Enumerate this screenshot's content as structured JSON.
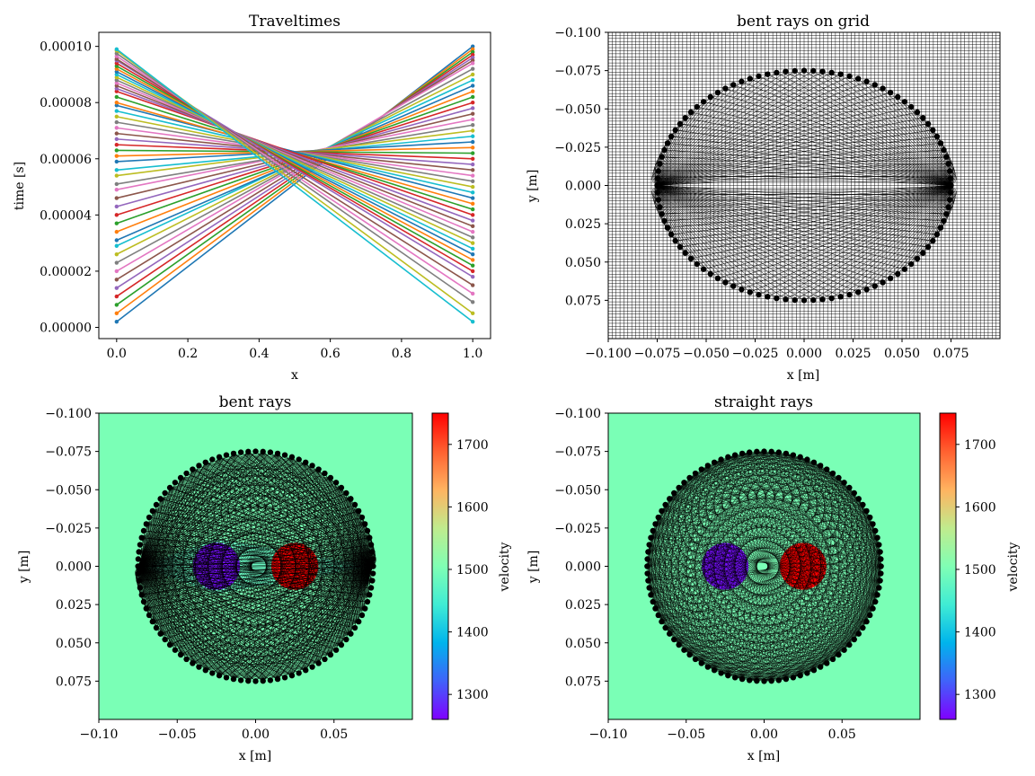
{
  "chart_data": [
    {
      "type": "line",
      "title": "Traveltimes",
      "xlabel": "x",
      "ylabel": "time [s]",
      "xlim": [
        -0.05,
        1.05
      ],
      "ylim": [
        -4e-06,
        0.000105
      ],
      "xticks": [
        "0.0",
        "0.2",
        "0.4",
        "0.6",
        "0.8",
        "1.0"
      ],
      "yticks": [
        "0.00000",
        "0.00002",
        "0.00004",
        "0.00006",
        "0.00008",
        "0.00010"
      ],
      "x": [
        0.0,
        1.0
      ],
      "series_description_count": 50,
      "time_at_x0": [
        2e-06,
        5e-06,
        8e-06,
        1.1e-05,
        1.4e-05,
        1.7e-05,
        2e-05,
        2.3e-05,
        2.6e-05,
        2.9e-05,
        3.1e-05,
        3.4e-05,
        3.7e-05,
        4e-05,
        4.3e-05,
        4.6e-05,
        4.9e-05,
        5.1e-05,
        5.4e-05,
        5.6e-05,
        5.9e-05,
        6.1e-05,
        6.3e-05,
        6.5e-05,
        6.7e-05,
        6.9e-05,
        7.1e-05,
        7.3e-05,
        7.5e-05,
        7.7e-05,
        7.9e-05,
        8e-05,
        8.2e-05,
        8.4e-05,
        8.5e-05,
        8.6e-05,
        8.7e-05,
        8.8e-05,
        8.9e-05,
        9e-05,
        9.1e-05,
        9.2e-05,
        9.3e-05,
        9.4e-05,
        9.5e-05,
        9.55e-05,
        9.65e-05,
        9.75e-05,
        9.85e-05,
        9.9e-05
      ],
      "time_at_x1": [
        0.0001,
        9.9e-05,
        9.8e-05,
        9.7e-05,
        9.6e-05,
        9.5e-05,
        9.4e-05,
        9.2e-05,
        9e-05,
        8.8e-05,
        8.6e-05,
        8.4e-05,
        8.2e-05,
        8e-05,
        7.8e-05,
        7.6e-05,
        7.4e-05,
        7.2e-05,
        7e-05,
        6.8e-05,
        6.6e-05,
        6.4e-05,
        6.2e-05,
        6e-05,
        5.8e-05,
        5.6e-05,
        5.4e-05,
        5.2e-05,
        5e-05,
        4.8e-05,
        4.6e-05,
        4.4e-05,
        4.2e-05,
        4e-05,
        3.8e-05,
        3.6e-05,
        3.4e-05,
        3.2e-05,
        3e-05,
        2.8e-05,
        2.6e-05,
        2.4e-05,
        2.2e-05,
        2e-05,
        1.8e-05,
        1.5e-05,
        1.2e-05,
        9e-06,
        5e-06,
        2e-06
      ],
      "colors": [
        "#1f77b4",
        "#ff7f0e",
        "#2ca02c",
        "#d62728",
        "#9467bd",
        "#8c564b",
        "#e377c2",
        "#7f7f7f",
        "#bcbd22",
        "#17becf"
      ]
    },
    {
      "type": "scatter",
      "title": "bent rays on grid",
      "xlabel": "x [m]",
      "ylabel": "y [m]",
      "xlim": [
        -0.1,
        0.1
      ],
      "ylim": [
        0.1,
        -0.1
      ],
      "xticks": [
        "−0.100",
        "−0.075",
        "−0.050",
        "−0.025",
        "0.000",
        "0.025",
        "0.050",
        "0.075"
      ],
      "yticks": [
        "−0.100",
        "−0.075",
        "−0.050",
        "−0.025",
        "0.000",
        "0.025",
        "0.050",
        "0.075"
      ],
      "transducer_ring_radius": 0.075,
      "transducer_count": 100,
      "grid": true
    },
    {
      "type": "heatmap",
      "title": "bent rays",
      "xlabel": "x [m]",
      "ylabel": "y [m]",
      "xlim": [
        -0.1,
        0.1
      ],
      "ylim": [
        0.1,
        -0.1
      ],
      "xticks": [
        "−0.10",
        "−0.05",
        "0.00",
        "0.05"
      ],
      "yticks": [
        "−0.100",
        "−0.075",
        "−0.050",
        "−0.025",
        "0.000",
        "0.025",
        "0.050",
        "0.075"
      ],
      "background_velocity": 1500,
      "inclusions": [
        {
          "x": -0.025,
          "y": 0.0,
          "r": 0.015,
          "velocity": 1270
        },
        {
          "x": 0.025,
          "y": 0.0,
          "r": 0.015,
          "velocity": 1750
        }
      ],
      "colorbar": {
        "label": "velocity",
        "ticks": [
          "1300",
          "1400",
          "1500",
          "1600",
          "1700"
        ],
        "range": [
          1260,
          1750
        ]
      }
    },
    {
      "type": "heatmap",
      "title": "straight rays",
      "xlabel": "x [m]",
      "ylabel": "y [m]",
      "xlim": [
        -0.1,
        0.1
      ],
      "ylim": [
        0.1,
        -0.1
      ],
      "xticks": [
        "−0.10",
        "−0.05",
        "0.00",
        "0.05"
      ],
      "yticks": [
        "−0.100",
        "−0.075",
        "−0.050",
        "−0.025",
        "0.000",
        "0.025",
        "0.050",
        "0.075"
      ],
      "background_velocity": 1500,
      "inclusions": [
        {
          "x": -0.025,
          "y": 0.0,
          "r": 0.015,
          "velocity": 1270
        },
        {
          "x": 0.025,
          "y": 0.0,
          "r": 0.015,
          "velocity": 1750
        }
      ],
      "colorbar": {
        "label": "velocity",
        "ticks": [
          "1300",
          "1400",
          "1500",
          "1600",
          "1700"
        ],
        "range": [
          1260,
          1750
        ]
      }
    }
  ]
}
